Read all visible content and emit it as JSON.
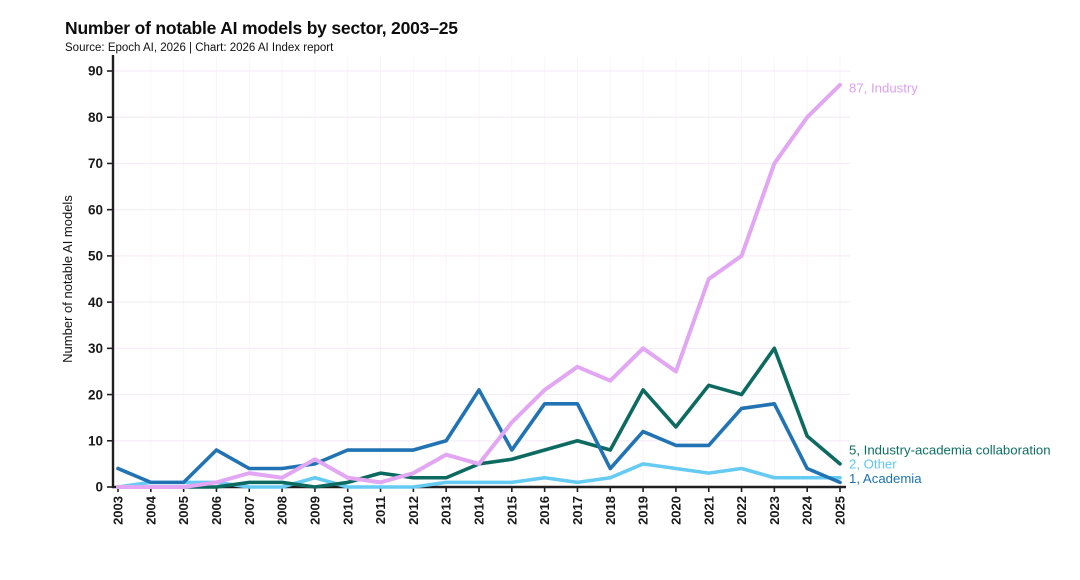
{
  "header": {
    "title": "Number of notable AI models by sector, 2003–25",
    "subtitle": "Source: Epoch AI, 2026 | Chart: 2026 AI Index report"
  },
  "chart_data": {
    "type": "line",
    "title": "Number of notable AI models by sector, 2003–25",
    "xlabel": "",
    "ylabel": "Number of notable AI models",
    "ylim": [
      0,
      90
    ],
    "yticks": [
      0,
      10,
      20,
      30,
      40,
      50,
      60,
      70,
      80,
      90
    ],
    "grid": "very faint horizontal and vertical gridlines",
    "legend_position": "end-of-line colored labels at right",
    "x": [
      2003,
      2004,
      2005,
      2006,
      2007,
      2008,
      2009,
      2010,
      2011,
      2012,
      2013,
      2014,
      2015,
      2016,
      2017,
      2018,
      2019,
      2020,
      2021,
      2022,
      2023,
      2024,
      2025
    ],
    "series": [
      {
        "name": "Other",
        "color": "#66cbf2",
        "label_color": "#5fc8f0",
        "end_label": "2, Other",
        "values": [
          0,
          1,
          1,
          1,
          0,
          0,
          2,
          0,
          0,
          0,
          1,
          1,
          1,
          2,
          1,
          2,
          5,
          4,
          3,
          4,
          2,
          2,
          2
        ]
      },
      {
        "name": "Industry-academia collaboration",
        "color": "#0d6a60",
        "label_color": "#0e6e62",
        "end_label": "5, Industry-academia collaboration",
        "values": [
          0,
          0,
          0,
          0,
          1,
          1,
          0,
          1,
          3,
          2,
          2,
          5,
          6,
          8,
          10,
          8,
          21,
          13,
          22,
          20,
          30,
          11,
          5
        ]
      },
      {
        "name": "Academia",
        "color": "#2173b4",
        "label_color": "#1d72b4",
        "end_label": "1, Academia",
        "values": [
          4,
          1,
          1,
          8,
          4,
          4,
          5,
          8,
          8,
          8,
          10,
          21,
          8,
          18,
          18,
          4,
          12,
          9,
          9,
          17,
          18,
          4,
          1
        ]
      },
      {
        "name": "Industry",
        "color": "#e2a6f2",
        "label_color": "#dca0ef",
        "end_label": "87, Industry",
        "values": [
          0,
          0,
          0,
          1,
          3,
          2,
          6,
          2,
          1,
          3,
          7,
          5,
          14,
          21,
          26,
          23,
          30,
          25,
          45,
          50,
          70,
          80,
          87
        ]
      }
    ]
  },
  "colors": {
    "axis": "#1f1f1f",
    "tick_text": "#1a1a1a",
    "grid_h": "#f5edf6",
    "grid_v": "#faf4fa",
    "background": "#ffffff"
  }
}
